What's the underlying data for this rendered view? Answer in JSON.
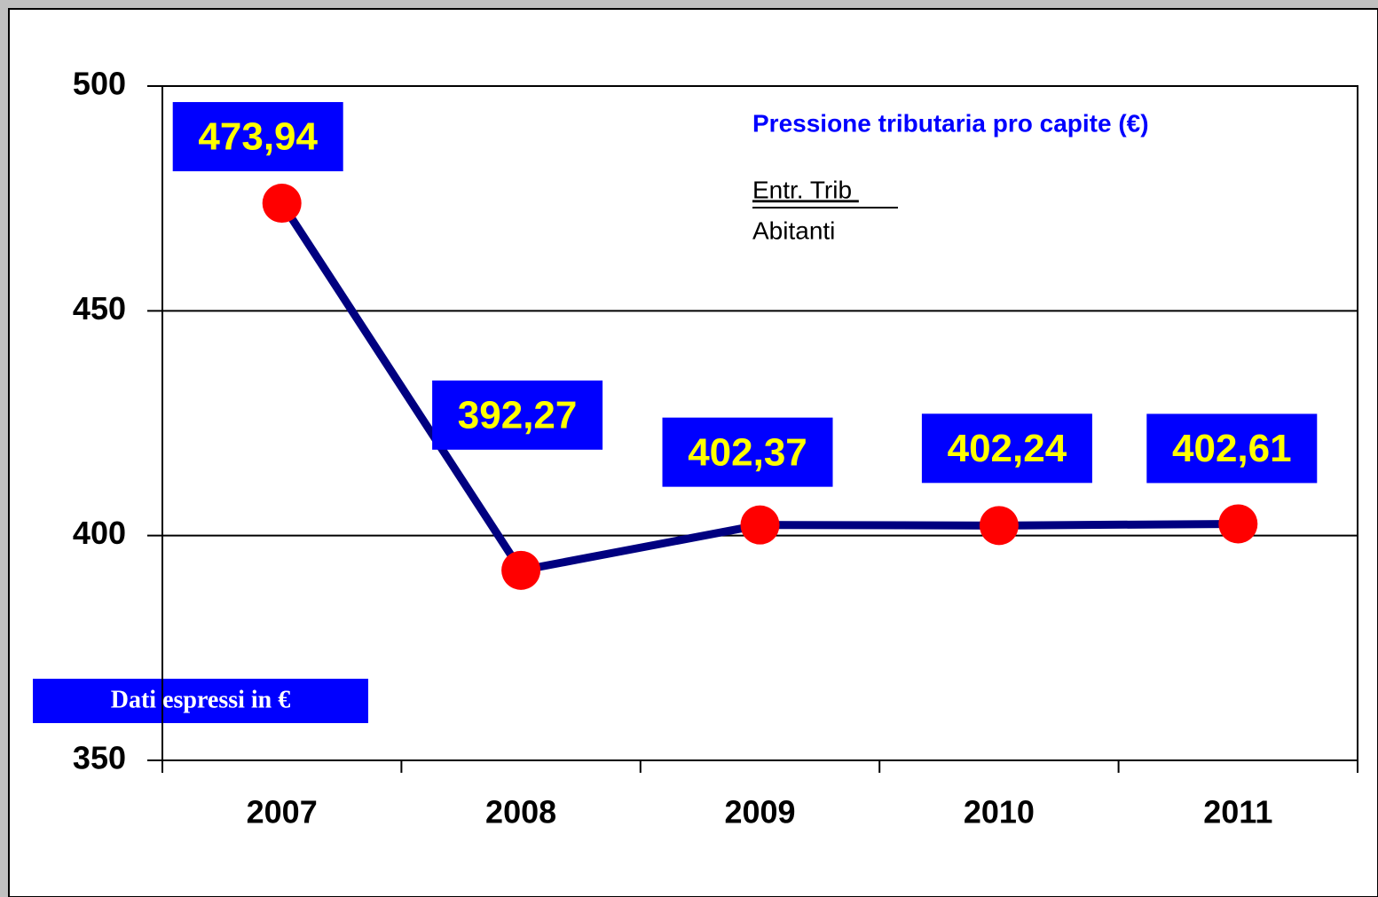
{
  "chart_data": {
    "type": "line",
    "title": "Pressione tributaria pro capite  (€)",
    "formula": {
      "numerator": "Entr. Trib ",
      "denominator": "Abitanti"
    },
    "note": "Dati espressi in €",
    "categories": [
      "2007",
      "2008",
      "2009",
      "2010",
      "2011"
    ],
    "values": [
      473.94,
      392.27,
      402.37,
      402.24,
      402.61
    ],
    "value_labels": [
      "473,94",
      "392,27",
      "402,37",
      "402,24",
      "402,61"
    ],
    "color": "#000080",
    "marker_color": "#ff0000",
    "label_background": "#0000ff",
    "label_color": "#ffff00",
    "ylim": [
      350,
      500
    ],
    "yticks": [
      350,
      400,
      450,
      500
    ],
    "grid": true
  }
}
